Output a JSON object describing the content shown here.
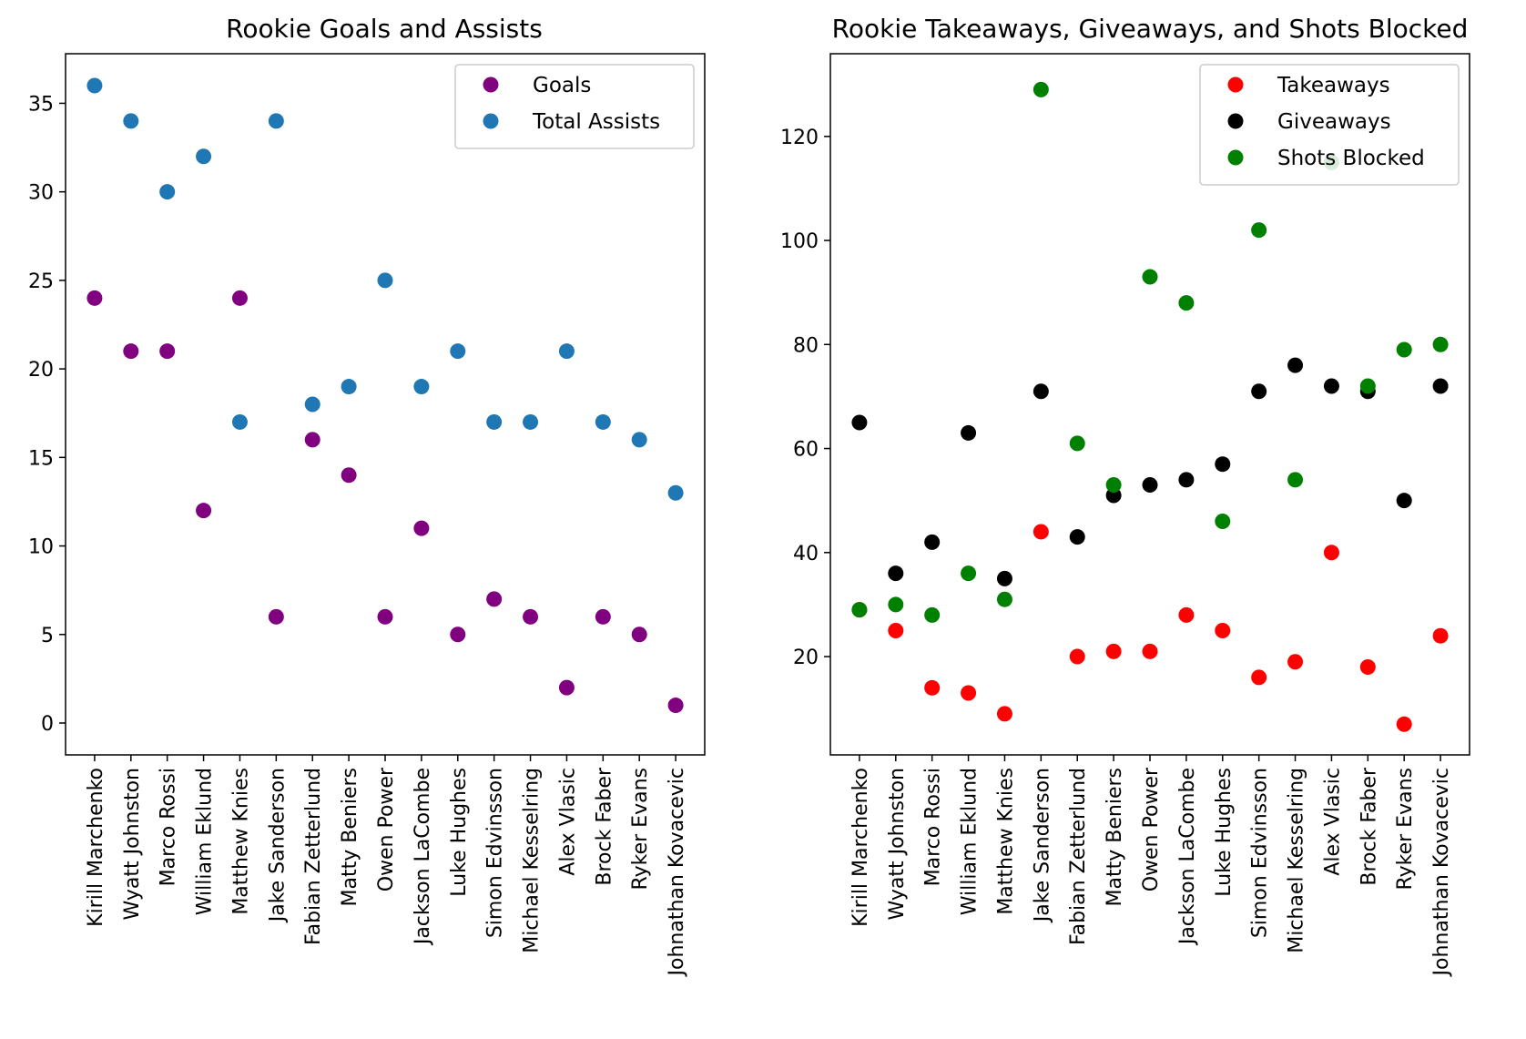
{
  "chart_data": [
    {
      "type": "scatter",
      "title": "Rookie Goals and Assists",
      "xlabel": "",
      "ylabel": "",
      "categories": [
        "Kirill Marchenko",
        "Wyatt Johnston",
        "Marco Rossi",
        "William Eklund",
        "Matthew Knies",
        "Jake Sanderson",
        "Fabian Zetterlund",
        "Matty Beniers",
        "Owen Power",
        "Jackson LaCombe",
        "Luke Hughes",
        "Simon Edvinsson",
        "Michael Kesselring",
        "Alex Vlasic",
        "Brock Faber",
        "Ryker Evans",
        "Johnathan Kovacevic"
      ],
      "ylim": [
        -1.8,
        37.8
      ],
      "yticks": [
        0,
        5,
        10,
        15,
        20,
        25,
        30,
        35
      ],
      "grid": false,
      "legend_position": "upper right",
      "series": [
        {
          "name": "Goals",
          "color": "#800080",
          "values": [
            24,
            21,
            21,
            12,
            24,
            6,
            16,
            14,
            6,
            11,
            5,
            7,
            6,
            2,
            6,
            5,
            1
          ]
        },
        {
          "name": "Total Assists",
          "color": "#1f77b4",
          "values": [
            36,
            34,
            30,
            32,
            17,
            34,
            18,
            19,
            25,
            19,
            21,
            17,
            17,
            21,
            17,
            16,
            13
          ]
        }
      ]
    },
    {
      "type": "scatter",
      "title": "Rookie Takeaways, Giveaways, and Shots Blocked",
      "xlabel": "",
      "ylabel": "",
      "categories": [
        "Kirill Marchenko",
        "Wyatt Johnston",
        "Marco Rossi",
        "William Eklund",
        "Matthew Knies",
        "Jake Sanderson",
        "Fabian Zetterlund",
        "Matty Beniers",
        "Owen Power",
        "Jackson LaCombe",
        "Luke Hughes",
        "Simon Edvinsson",
        "Michael Kesselring",
        "Alex Vlasic",
        "Brock Faber",
        "Ryker Evans",
        "Johnathan Kovacevic"
      ],
      "ylim": [
        1.1,
        135.9
      ],
      "yticks": [
        20,
        40,
        60,
        80,
        100,
        120
      ],
      "grid": false,
      "legend_position": "upper right",
      "series": [
        {
          "name": "Takeaways",
          "color": "#ff0000",
          "values": [
            29,
            25,
            14,
            13,
            9,
            44,
            20,
            21,
            21,
            28,
            25,
            16,
            19,
            40,
            18,
            7,
            24
          ]
        },
        {
          "name": "Giveaways",
          "color": "#000000",
          "values": [
            65,
            36,
            42,
            63,
            35,
            71,
            43,
            51,
            53,
            54,
            57,
            71,
            76,
            72,
            71,
            50,
            72
          ]
        },
        {
          "name": "Shots Blocked",
          "color": "#008000",
          "values": [
            29,
            30,
            28,
            36,
            31,
            129,
            61,
            53,
            93,
            88,
            46,
            102,
            54,
            115,
            72,
            79,
            80
          ]
        }
      ]
    }
  ]
}
